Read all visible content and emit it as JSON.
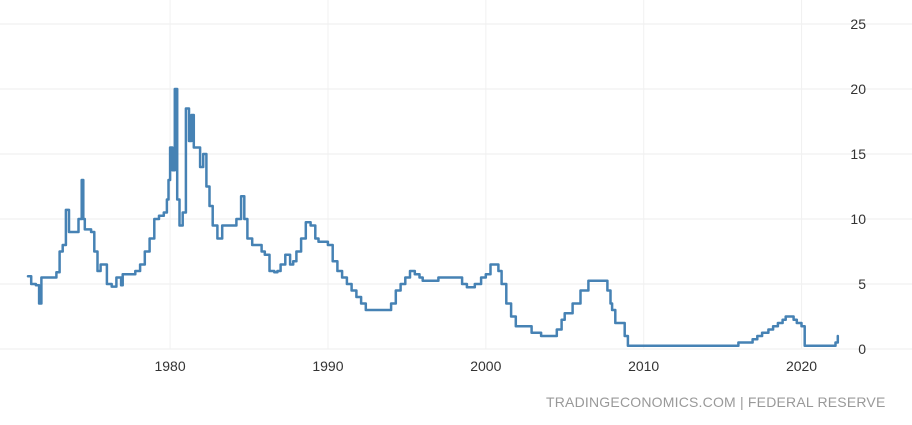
{
  "chart_data": {
    "type": "line",
    "title": "",
    "xlabel": "",
    "ylabel": "",
    "xlim": [
      1971,
      2022.5
    ],
    "ylim": [
      0,
      25
    ],
    "x_ticks": [
      1980,
      1990,
      2000,
      2010,
      2020
    ],
    "y_ticks": [
      0,
      5,
      10,
      15,
      20,
      25
    ],
    "y_axis_side": "right",
    "grid": true,
    "legend": "none",
    "colors": {
      "line": "#4682b4",
      "grid": "#ececec",
      "text": "#333333",
      "source": "#999999"
    },
    "series": [
      {
        "x": [
          1971.0,
          1971.2,
          1971.5,
          1971.7,
          1971.85,
          1972.0,
          1972.2,
          1972.5,
          1972.8,
          1973.0,
          1973.2,
          1973.4,
          1973.6,
          1973.7,
          1973.8,
          1974.0,
          1974.2,
          1974.4,
          1974.5,
          1974.6,
          1974.7,
          1975.0,
          1975.2,
          1975.4,
          1975.6,
          1976.0,
          1976.3,
          1976.6,
          1976.9,
          1977.0,
          1977.4,
          1977.8,
          1978.1,
          1978.4,
          1978.7,
          1979.0,
          1979.3,
          1979.6,
          1979.8,
          1979.9,
          1980.0,
          1980.15,
          1980.3,
          1980.45,
          1980.6,
          1980.8,
          1981.0,
          1981.2,
          1981.35,
          1981.5,
          1981.6,
          1981.75,
          1981.9,
          1982.1,
          1982.3,
          1982.5,
          1982.7,
          1983.0,
          1983.3,
          1983.6,
          1983.9,
          1984.2,
          1984.5,
          1984.7,
          1984.9,
          1985.2,
          1985.5,
          1985.8,
          1986.0,
          1986.3,
          1986.6,
          1986.8,
          1987.0,
          1987.3,
          1987.6,
          1987.8,
          1988.0,
          1988.3,
          1988.6,
          1988.9,
          1989.2,
          1989.4,
          1989.7,
          1990.0,
          1990.3,
          1990.6,
          1990.9,
          1991.2,
          1991.5,
          1991.8,
          1992.1,
          1992.4,
          1992.7,
          1993.0,
          1993.5,
          1994.0,
          1994.3,
          1994.6,
          1994.9,
          1995.2,
          1995.5,
          1995.8,
          1996.0,
          1996.5,
          1997.0,
          1997.5,
          1998.0,
          1998.5,
          1998.8,
          1999.0,
          1999.3,
          1999.7,
          2000.0,
          2000.3,
          2000.5,
          2000.8,
          2001.0,
          2001.3,
          2001.6,
          2001.9,
          2002.2,
          2002.5,
          2002.9,
          2003.2,
          2003.5,
          2004.0,
          2004.5,
          2004.8,
          2005.0,
          2005.5,
          2006.0,
          2006.5,
          2006.8,
          2007.0,
          2007.5,
          2007.7,
          2007.9,
          2008.0,
          2008.2,
          2008.5,
          2008.8,
          2009.0,
          2010.0,
          2012.0,
          2014.0,
          2015.9,
          2016.0,
          2016.5,
          2016.9,
          2017.2,
          2017.5,
          2017.9,
          2018.2,
          2018.5,
          2018.8,
          2019.0,
          2019.5,
          2019.7,
          2020.0,
          2020.2,
          2021.0,
          2022.0,
          2022.15,
          2022.3
        ],
        "y": [
          5.6,
          5.0,
          4.9,
          3.5,
          5.5,
          5.5,
          5.5,
          5.5,
          5.9,
          7.5,
          8.0,
          10.7,
          9.0,
          9.0,
          9.0,
          9.0,
          10.0,
          13.0,
          10.0,
          9.2,
          9.2,
          9.0,
          7.5,
          6.0,
          6.5,
          5.0,
          4.8,
          5.5,
          4.9,
          5.75,
          5.75,
          6.0,
          6.5,
          7.5,
          8.5,
          10.0,
          10.25,
          10.5,
          11.5,
          13.0,
          15.5,
          13.75,
          20.0,
          11.5,
          9.5,
          10.5,
          18.5,
          16.0,
          18.0,
          15.5,
          15.5,
          15.5,
          14.0,
          15.0,
          12.5,
          11.0,
          9.5,
          8.5,
          9.5,
          9.5,
          9.5,
          10.0,
          11.75,
          10.0,
          8.5,
          8.0,
          8.0,
          7.5,
          7.25,
          6.0,
          5.9,
          6.0,
          6.5,
          7.25,
          6.5,
          6.75,
          7.5,
          8.5,
          9.75,
          9.5,
          8.5,
          8.25,
          8.25,
          8.0,
          6.75,
          6.0,
          5.5,
          5.0,
          4.5,
          4.0,
          3.5,
          3.0,
          3.0,
          3.0,
          3.0,
          3.5,
          4.5,
          5.0,
          5.5,
          6.0,
          5.75,
          5.5,
          5.25,
          5.25,
          5.5,
          5.5,
          5.5,
          5.0,
          4.75,
          4.75,
          5.0,
          5.5,
          5.75,
          6.5,
          6.5,
          6.0,
          5.0,
          3.5,
          2.5,
          1.75,
          1.75,
          1.75,
          1.25,
          1.25,
          1.0,
          1.0,
          1.5,
          2.25,
          2.75,
          3.5,
          4.5,
          5.25,
          5.25,
          5.25,
          5.25,
          4.5,
          3.5,
          3.0,
          2.0,
          2.0,
          1.0,
          0.25,
          0.25,
          0.25,
          0.25,
          0.25,
          0.5,
          0.5,
          0.75,
          1.0,
          1.25,
          1.5,
          1.75,
          2.0,
          2.25,
          2.5,
          2.25,
          2.0,
          1.75,
          0.25,
          0.25,
          0.25,
          0.5,
          1.0
        ]
      }
    ]
  },
  "source": {
    "text": "TRADINGECONOMICS.COM | FEDERAL RESERVE"
  }
}
